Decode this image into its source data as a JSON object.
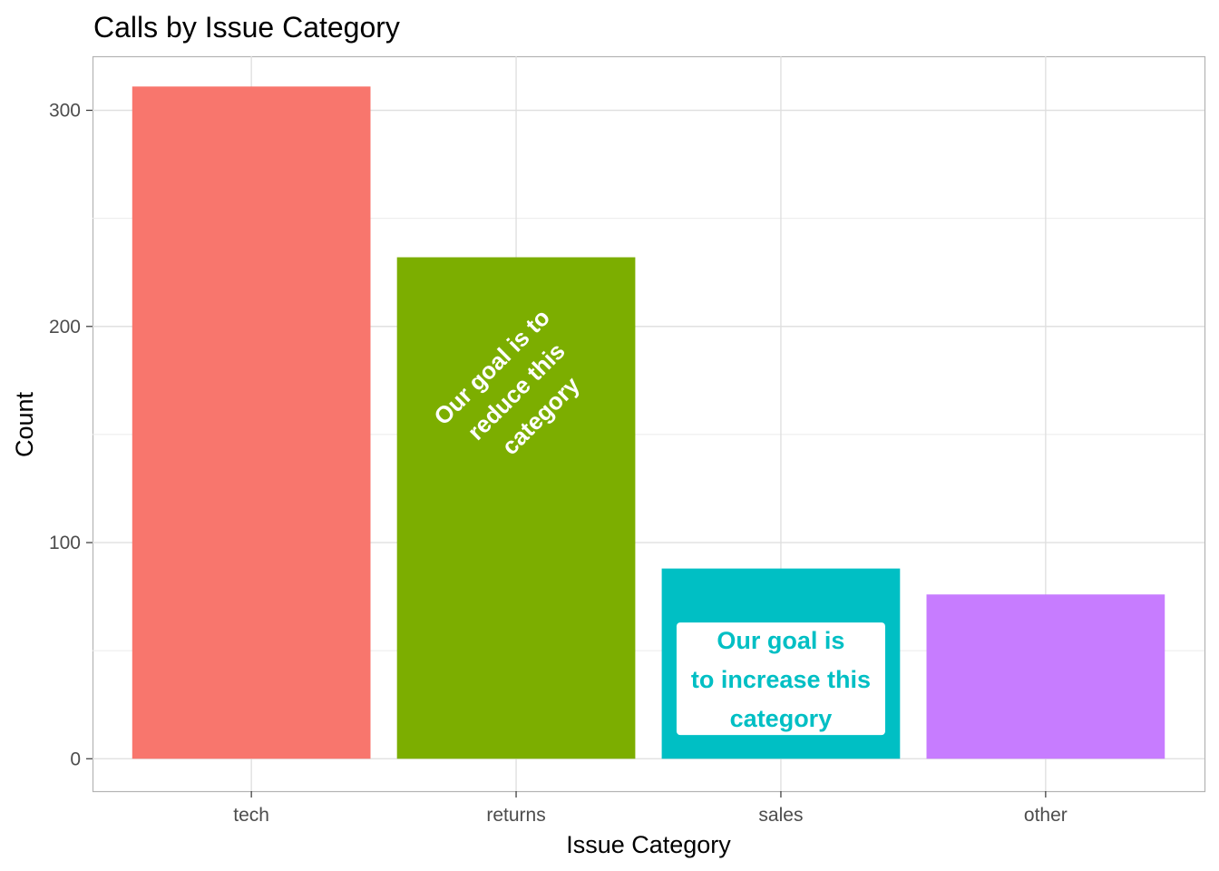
{
  "chart_data": {
    "type": "bar",
    "title": "Calls by Issue Category",
    "xlabel": "Issue Category",
    "ylabel": "Count",
    "categories": [
      "tech",
      "returns",
      "sales",
      "other"
    ],
    "values": [
      311,
      232,
      88,
      76
    ],
    "colors": [
      "#F8766D",
      "#7CAE00",
      "#00BFC4",
      "#C77CFF"
    ],
    "ylim": [
      -15,
      325
    ],
    "yticks": [
      0,
      100,
      200,
      300
    ],
    "grid": true,
    "legend": "none",
    "annotations": [
      {
        "category": "returns",
        "lines": [
          "Our goal is to",
          "reduce this",
          "category"
        ],
        "text_color": "#ffffff",
        "rotation": -45,
        "boxed": false
      },
      {
        "category": "sales",
        "lines": [
          "Our goal is",
          "to increase this",
          "category"
        ],
        "text_color": "#00BFC4",
        "box_fill": "#ffffff",
        "boxed": true
      }
    ]
  }
}
